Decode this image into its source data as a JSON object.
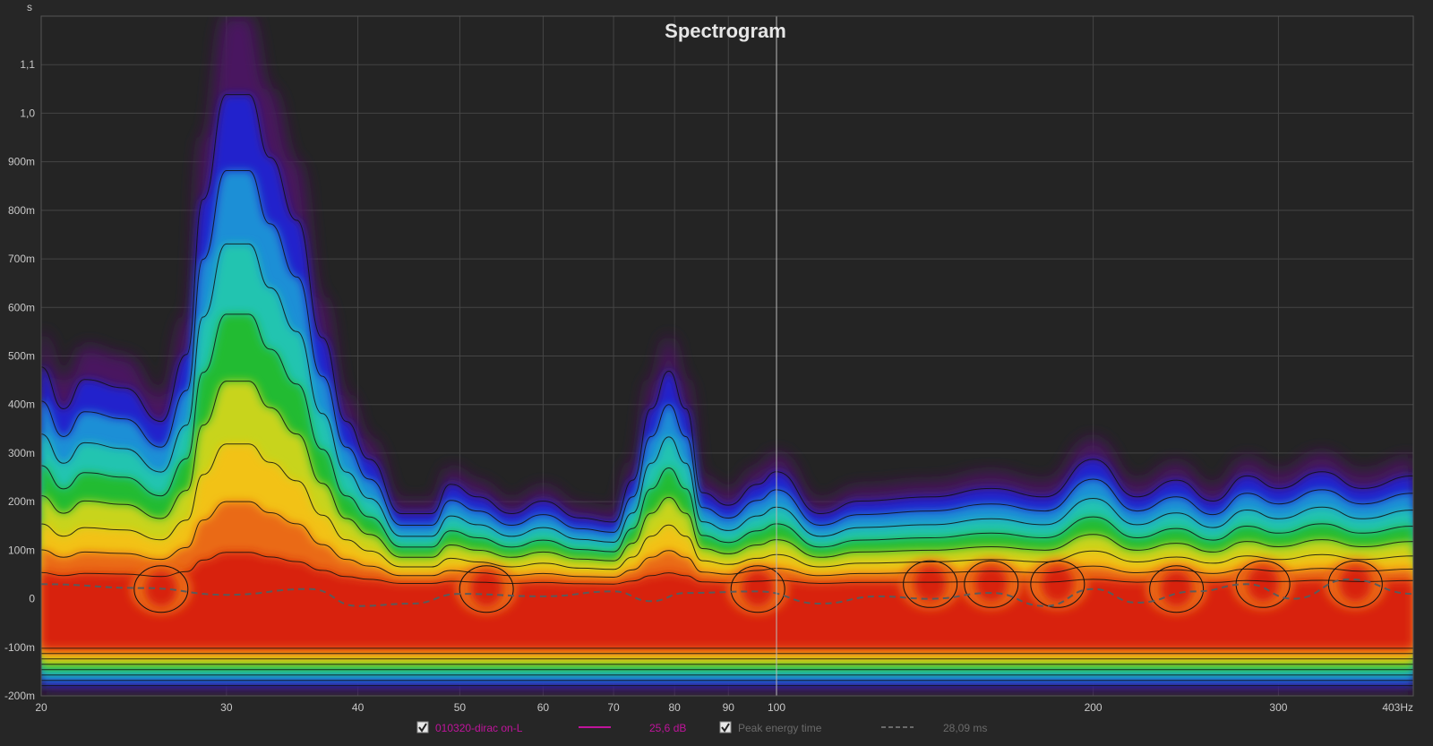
{
  "chart_data": {
    "type": "heatmap",
    "title": "Spectrogram",
    "x_unit": "Hz",
    "y_unit": "s",
    "x_scale": "log",
    "xlim": [
      20,
      403
    ],
    "ylim": [
      -0.2,
      1.2
    ],
    "x_ticks": [
      {
        "value": 20,
        "label": "20"
      },
      {
        "value": 30,
        "label": "30"
      },
      {
        "value": 40,
        "label": "40"
      },
      {
        "value": 50,
        "label": "50"
      },
      {
        "value": 60,
        "label": "60"
      },
      {
        "value": 70,
        "label": "70"
      },
      {
        "value": 80,
        "label": "80"
      },
      {
        "value": 90,
        "label": "90"
      },
      {
        "value": 100,
        "label": "100"
      },
      {
        "value": 200,
        "label": "200"
      },
      {
        "value": 300,
        "label": "300"
      },
      {
        "value": 403,
        "label": "403Hz"
      }
    ],
    "y_ticks": [
      {
        "value": 1.1,
        "label": "1,1"
      },
      {
        "value": 1.0,
        "label": "1,0"
      },
      {
        "value": 0.9,
        "label": "900m"
      },
      {
        "value": 0.8,
        "label": "800m"
      },
      {
        "value": 0.7,
        "label": "700m"
      },
      {
        "value": 0.6,
        "label": "600m"
      },
      {
        "value": 0.5,
        "label": "500m"
      },
      {
        "value": 0.4,
        "label": "400m"
      },
      {
        "value": 0.3,
        "label": "300m"
      },
      {
        "value": 0.2,
        "label": "200m"
      },
      {
        "value": 0.1,
        "label": "100m"
      },
      {
        "value": 0.0,
        "label": "0"
      },
      {
        "value": -0.1,
        "label": "-100m"
      },
      {
        "value": -0.2,
        "label": "-200m"
      }
    ],
    "grid": true,
    "cursor_x": 100,
    "decay_envelope": [
      {
        "f": 20,
        "t": 0.55
      },
      {
        "f": 21,
        "t": 0.45
      },
      {
        "f": 22,
        "t": 0.52
      },
      {
        "f": 24,
        "t": 0.5
      },
      {
        "f": 26,
        "t": 0.42
      },
      {
        "f": 27.5,
        "t": 0.58
      },
      {
        "f": 28.5,
        "t": 0.95
      },
      {
        "f": 30,
        "t": 1.2
      },
      {
        "f": 31.5,
        "t": 1.2
      },
      {
        "f": 33,
        "t": 1.05
      },
      {
        "f": 35,
        "t": 0.9
      },
      {
        "f": 37,
        "t": 0.62
      },
      {
        "f": 39,
        "t": 0.42
      },
      {
        "f": 41,
        "t": 0.33
      },
      {
        "f": 44,
        "t": 0.2
      },
      {
        "f": 47,
        "t": 0.2
      },
      {
        "f": 49,
        "t": 0.27
      },
      {
        "f": 52,
        "t": 0.24
      },
      {
        "f": 56,
        "t": 0.2
      },
      {
        "f": 60,
        "t": 0.23
      },
      {
        "f": 65,
        "t": 0.19
      },
      {
        "f": 70,
        "t": 0.18
      },
      {
        "f": 73,
        "t": 0.28
      },
      {
        "f": 76,
        "t": 0.45
      },
      {
        "f": 79,
        "t": 0.54
      },
      {
        "f": 82,
        "t": 0.45
      },
      {
        "f": 85,
        "t": 0.25
      },
      {
        "f": 90,
        "t": 0.22
      },
      {
        "f": 96,
        "t": 0.27
      },
      {
        "f": 100,
        "t": 0.3
      },
      {
        "f": 110,
        "t": 0.2
      },
      {
        "f": 120,
        "t": 0.23
      },
      {
        "f": 140,
        "t": 0.24
      },
      {
        "f": 160,
        "t": 0.26
      },
      {
        "f": 180,
        "t": 0.24
      },
      {
        "f": 200,
        "t": 0.33
      },
      {
        "f": 220,
        "t": 0.24
      },
      {
        "f": 240,
        "t": 0.28
      },
      {
        "f": 260,
        "t": 0.23
      },
      {
        "f": 280,
        "t": 0.29
      },
      {
        "f": 300,
        "t": 0.26
      },
      {
        "f": 330,
        "t": 0.3
      },
      {
        "f": 360,
        "t": 0.26
      },
      {
        "f": 403,
        "t": 0.29
      }
    ],
    "hotspots": [
      {
        "f": 26,
        "t": 0.02
      },
      {
        "f": 53,
        "t": 0.02
      },
      {
        "f": 96,
        "t": 0.02
      },
      {
        "f": 140,
        "t": 0.03
      },
      {
        "f": 160,
        "t": 0.03
      },
      {
        "f": 185,
        "t": 0.03
      },
      {
        "f": 240,
        "t": 0.02
      },
      {
        "f": 290,
        "t": 0.03
      },
      {
        "f": 355,
        "t": 0.03
      }
    ],
    "peak_energy_time": [
      {
        "f": 20,
        "t": 0.03
      },
      {
        "f": 25,
        "t": 0.022
      },
      {
        "f": 30,
        "t": 0.008
      },
      {
        "f": 36,
        "t": 0.02
      },
      {
        "f": 40,
        "t": -0.015
      },
      {
        "f": 45,
        "t": -0.01
      },
      {
        "f": 50,
        "t": 0.01
      },
      {
        "f": 60,
        "t": 0.005
      },
      {
        "f": 70,
        "t": 0.015
      },
      {
        "f": 76,
        "t": -0.005
      },
      {
        "f": 82,
        "t": 0.012
      },
      {
        "f": 96,
        "t": 0.015
      },
      {
        "f": 110,
        "t": -0.01
      },
      {
        "f": 125,
        "t": 0.005
      },
      {
        "f": 140,
        "t": 0.0
      },
      {
        "f": 160,
        "t": 0.012
      },
      {
        "f": 180,
        "t": -0.015
      },
      {
        "f": 200,
        "t": 0.02
      },
      {
        "f": 220,
        "t": -0.008
      },
      {
        "f": 250,
        "t": 0.015
      },
      {
        "f": 280,
        "t": 0.03
      },
      {
        "f": 310,
        "t": 0.0
      },
      {
        "f": 350,
        "t": 0.04
      },
      {
        "f": 403,
        "t": 0.01
      }
    ],
    "colors": {
      "background": "#262626",
      "grid": "#454545",
      "cursor": "#bbbbbb",
      "palette": [
        "#4a1660",
        "#2222cc",
        "#1f8fd6",
        "#21c4b0",
        "#22bb33",
        "#c8d41c",
        "#f2c216",
        "#ea6a16",
        "#d8230f"
      ]
    }
  },
  "legend": {
    "items": [
      {
        "checked": true,
        "name": "010320-dirac on-L",
        "value": "25,6 dB",
        "color": "#c0149c",
        "style": "solid",
        "muted": false
      },
      {
        "checked": true,
        "name": "Peak energy time",
        "value": "28,09 ms",
        "color": "#6a6a6a",
        "style": "dashed",
        "muted": true
      }
    ]
  }
}
